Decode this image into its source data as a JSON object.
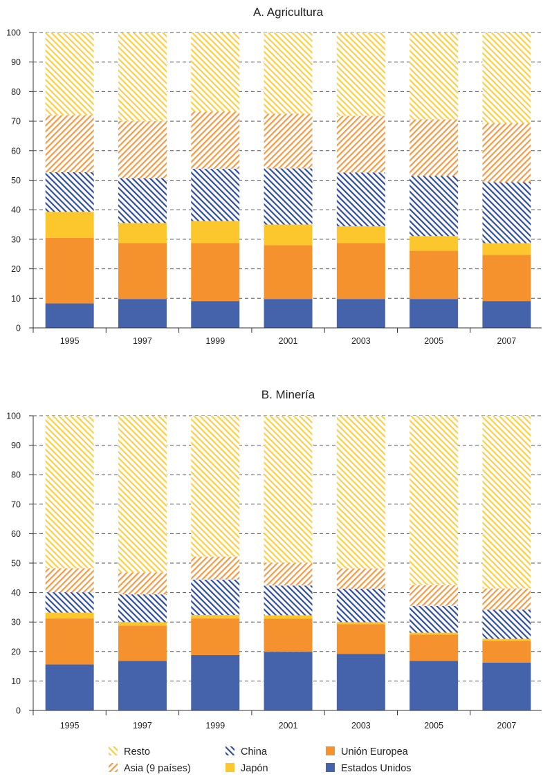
{
  "chart_data": [
    {
      "type": "bar",
      "stacked": true,
      "title": "A. Agricultura",
      "xlabel": "",
      "ylabel": "",
      "ylim": [
        0,
        100
      ],
      "yticks": [
        0,
        10,
        20,
        30,
        40,
        50,
        60,
        70,
        80,
        90,
        100
      ],
      "grid": "horizontal dashed",
      "categories": [
        "1995",
        "1997",
        "1999",
        "2001",
        "2003",
        "2005",
        "2007"
      ],
      "series": [
        {
          "name": "Estados Unidos",
          "values": [
            8.3,
            9.8,
            9.1,
            9.8,
            9.8,
            9.8,
            9.1
          ]
        },
        {
          "name": "Unión Europea",
          "values": [
            22.2,
            18.9,
            19.6,
            18.2,
            18.9,
            16.3,
            15.6
          ]
        },
        {
          "name": "Japón",
          "values": [
            8.8,
            6.8,
            7.5,
            7.0,
            5.7,
            5.0,
            4.0
          ]
        },
        {
          "name": "China",
          "values": [
            13.4,
            15.2,
            17.7,
            19.0,
            18.2,
            20.3,
            20.6
          ]
        },
        {
          "name": "Asia (9 países)",
          "values": [
            19.3,
            19.3,
            19.3,
            18.5,
            19.2,
            19.2,
            19.9
          ]
        },
        {
          "name": "Resto",
          "values": [
            28.0,
            30.0,
            26.8,
            27.5,
            28.2,
            29.4,
            30.8
          ]
        }
      ]
    },
    {
      "type": "bar",
      "stacked": true,
      "title": "B. Minería",
      "xlabel": "",
      "ylabel": "",
      "ylim": [
        0,
        100
      ],
      "yticks": [
        0,
        10,
        20,
        30,
        40,
        50,
        60,
        70,
        80,
        90,
        100
      ],
      "grid": "horizontal dashed",
      "categories": [
        "1995",
        "1997",
        "1999",
        "2001",
        "2003",
        "2005",
        "2007"
      ],
      "series": [
        {
          "name": "Estados Unidos",
          "values": [
            15.6,
            16.8,
            18.8,
            19.9,
            19.2,
            16.8,
            16.2
          ]
        },
        {
          "name": "Unión Europea",
          "values": [
            15.6,
            12.0,
            12.4,
            11.2,
            10.1,
            8.9,
            7.4
          ]
        },
        {
          "name": "Japón",
          "values": [
            2.0,
            1.2,
            1.2,
            1.2,
            0.7,
            0.7,
            0.7
          ]
        },
        {
          "name": "China",
          "values": [
            6.9,
            9.4,
            12.0,
            10.1,
            11.3,
            9.1,
            9.9
          ]
        },
        {
          "name": "Asia (9 países)",
          "values": [
            8.2,
            7.4,
            7.8,
            7.8,
            6.9,
            7.0,
            7.2
          ]
        },
        {
          "name": "Resto",
          "values": [
            51.7,
            53.2,
            47.8,
            49.8,
            51.8,
            57.5,
            58.6
          ]
        }
      ]
    }
  ],
  "legend": {
    "placement": "bottom",
    "items": [
      {
        "label": "Resto",
        "series": "Resto"
      },
      {
        "label": "China",
        "series": "China"
      },
      {
        "label": "Unión Europea",
        "series": "Unión Europea"
      },
      {
        "label": "Asia (9 países)",
        "series": "Asia (9 países)"
      },
      {
        "label": "Japón",
        "series": "Japón"
      },
      {
        "label": "Estados Unidos",
        "series": "Estados Unidos"
      }
    ]
  },
  "colors": {
    "Estados Unidos": "#4563ab",
    "Unión Europea": "#f5922e",
    "Japón": "#fcc72c",
    "China": "#2f4d9c",
    "Asia (9 países)": "#f39a45",
    "Resto": "#fbcf45",
    "axis": "#333333",
    "grid": "#555555"
  }
}
